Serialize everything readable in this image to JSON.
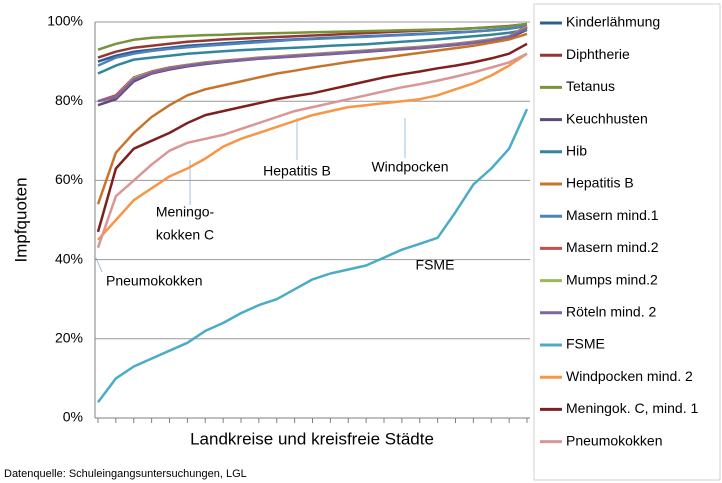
{
  "chart_data": {
    "type": "line",
    "y_label": "Impfquoten",
    "x_label": "Landkreise und kreisfreie Städte",
    "source": "Datenquelle: Schuleingangsuntersuchungen, LGL",
    "annotations": [
      "Meningo-",
      "kokken C",
      "Hepatitis B",
      "Windpocken",
      "Pneumokokken",
      "FSME"
    ],
    "categories": [
      null,
      null,
      null,
      null,
      null,
      null,
      null,
      null,
      null,
      null,
      null,
      null,
      null,
      null,
      null,
      null,
      null,
      null,
      null,
      null,
      null,
      null,
      null,
      null,
      null
    ],
    "ylim": [
      0,
      100
    ],
    "yticks": [
      {
        "value": 0,
        "label": "0%"
      },
      {
        "value": 20,
        "label": "20%"
      },
      {
        "value": 40,
        "label": "40%"
      },
      {
        "value": 60,
        "label": "60%"
      },
      {
        "value": 80,
        "label": "80%"
      },
      {
        "value": 100,
        "label": "100%"
      }
    ],
    "grid": true,
    "legend": "right",
    "series": [
      {
        "name": "Kinderlähmung",
        "color": "#2f5f8f",
        "values": [
          90,
          91.5,
          92.5,
          93,
          93.5,
          94,
          94.3,
          94.6,
          94.9,
          95.2,
          95.4,
          95.6,
          95.8,
          96,
          96.2,
          96.4,
          96.6,
          96.8,
          97,
          97.2,
          97.4,
          97.6,
          97.9,
          98.3,
          99
        ]
      },
      {
        "name": "Diphtherie",
        "color": "#943634",
        "values": [
          91,
          92.5,
          93.5,
          94,
          94.5,
          95,
          95.3,
          95.6,
          95.8,
          96,
          96.2,
          96.4,
          96.6,
          96.8,
          97,
          97.2,
          97.4,
          97.6,
          97.8,
          98,
          98.2,
          98.4,
          98.7,
          99,
          99.5
        ]
      },
      {
        "name": "Tetanus",
        "color": "#77933c",
        "values": [
          93,
          94.5,
          95.5,
          96,
          96.3,
          96.5,
          96.7,
          96.8,
          97,
          97.1,
          97.2,
          97.3,
          97.4,
          97.5,
          97.6,
          97.7,
          97.8,
          97.9,
          98,
          98.1,
          98.2,
          98.4,
          98.6,
          98.9,
          99.5
        ]
      },
      {
        "name": "Keuchhusten",
        "color": "#5f497a",
        "values": [
          79,
          80.5,
          85,
          87,
          88,
          88.8,
          89.4,
          89.9,
          90.3,
          90.7,
          91,
          91.3,
          91.6,
          91.9,
          92.2,
          92.5,
          92.8,
          93.1,
          93.4,
          93.8,
          94.2,
          94.7,
          95.3,
          96,
          98
        ]
      },
      {
        "name": "Hib",
        "color": "#31859c",
        "values": [
          87,
          89,
          90.5,
          91,
          91.5,
          92,
          92.3,
          92.6,
          92.9,
          93.1,
          93.3,
          93.5,
          93.7,
          94,
          94.2,
          94.4,
          94.7,
          95,
          95.3,
          95.6,
          96,
          96.4,
          96.8,
          97.3,
          98
        ]
      },
      {
        "name": "Hepatitis B",
        "color": "#c7742b",
        "values": [
          54,
          67,
          72,
          76,
          79,
          81.5,
          83,
          84,
          85,
          86,
          87,
          87.7,
          88.5,
          89.2,
          89.9,
          90.5,
          91,
          91.6,
          92.2,
          92.8,
          93.4,
          94,
          94.8,
          95.6,
          97
        ]
      },
      {
        "name": "Masern mind.1",
        "color": "#4f81bd",
        "values": [
          89,
          91,
          92,
          92.7,
          93.2,
          93.6,
          94,
          94.3,
          94.6,
          94.9,
          95.2,
          95.5,
          95.7,
          95.9,
          96.1,
          96.3,
          96.5,
          96.7,
          96.9,
          97.1,
          97.3,
          97.6,
          97.9,
          98.3,
          99
        ]
      },
      {
        "name": "Masern mind.2",
        "color": "#c0504d",
        "values": [
          80,
          81.5,
          86,
          87.5,
          88.5,
          89.2,
          89.8,
          90.2,
          90.6,
          91,
          91.3,
          91.6,
          91.9,
          92.2,
          92.5,
          92.8,
          93.1,
          93.4,
          93.7,
          94.1,
          94.5,
          95,
          95.6,
          96.4,
          99
        ]
      },
      {
        "name": "Mumps mind.2",
        "color": "#9bbb59",
        "values": [
          80,
          81,
          85.8,
          87.3,
          88.3,
          89.1,
          89.7,
          90.1,
          90.5,
          90.9,
          91.2,
          91.5,
          91.8,
          92.1,
          92.4,
          92.7,
          93,
          93.3,
          93.6,
          94,
          94.4,
          94.9,
          95.5,
          96.3,
          98.8
        ]
      },
      {
        "name": "Röteln mind. 2",
        "color": "#8064a2",
        "values": [
          80,
          81,
          85.5,
          87.2,
          88.2,
          89,
          89.6,
          90,
          90.4,
          90.8,
          91.1,
          91.4,
          91.7,
          92,
          92.3,
          92.6,
          92.9,
          93.2,
          93.5,
          93.9,
          94.3,
          94.8,
          95.4,
          96.2,
          98.5
        ]
      },
      {
        "name": "FSME",
        "color": "#4bacc6",
        "values": [
          4,
          10,
          13,
          15,
          17,
          19,
          22,
          24,
          26.5,
          28.5,
          30,
          32.5,
          35,
          36.5,
          37.5,
          38.5,
          40.5,
          42.5,
          44,
          45.5,
          52,
          59,
          63,
          68,
          78
        ]
      },
      {
        "name": "Windpocken mind. 2",
        "color": "#f79646",
        "values": [
          45,
          50,
          55,
          58,
          61,
          63,
          65.5,
          68.5,
          70.5,
          72,
          73.5,
          75,
          76.5,
          77.5,
          78.5,
          79,
          79.5,
          80,
          80.5,
          81.5,
          83,
          84.5,
          86.5,
          89,
          92
        ]
      },
      {
        "name": "Meningok. C, mind. 1",
        "color": "#7f2020",
        "values": [
          47,
          63,
          68,
          70,
          72,
          74.5,
          76.5,
          77.5,
          78.5,
          79.5,
          80.5,
          81.3,
          82,
          83,
          84,
          85,
          86,
          86.8,
          87.5,
          88.3,
          89,
          89.8,
          90.8,
          92,
          94.5
        ]
      },
      {
        "name": "Pneumokokken",
        "color": "#d99694",
        "values": [
          43,
          56,
          60,
          64,
          67.5,
          69.5,
          70.5,
          71.5,
          73,
          74.5,
          76,
          77.5,
          78.5,
          79.5,
          80.5,
          81.5,
          82.5,
          83.5,
          84.3,
          85.2,
          86.2,
          87.3,
          88.5,
          89.8,
          92
        ]
      }
    ]
  }
}
